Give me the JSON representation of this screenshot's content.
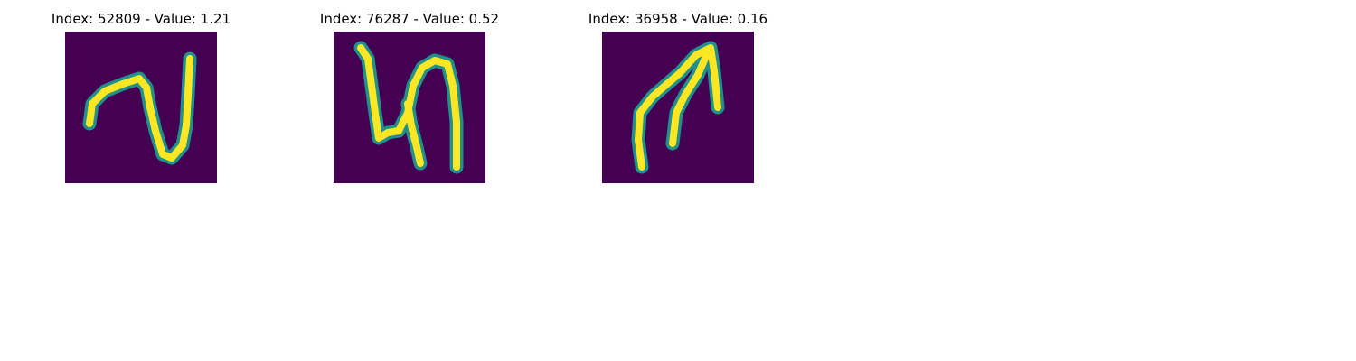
{
  "colors": {
    "background": "#440154",
    "low": "#3b528b",
    "mid": "#21918c",
    "high": "#5ec962",
    "peak": "#fde725"
  },
  "panels": [
    {
      "title": "Index: 52809 - Value: 1.21",
      "image_icon": "handwritten-glyph-a-icon"
    },
    {
      "title": "Index: 76287 - Value: 0.52",
      "image_icon": "handwritten-glyph-b-icon"
    },
    {
      "title": "Index: 36958 - Value: 0.16",
      "image_icon": "handwritten-glyph-c-icon"
    }
  ]
}
